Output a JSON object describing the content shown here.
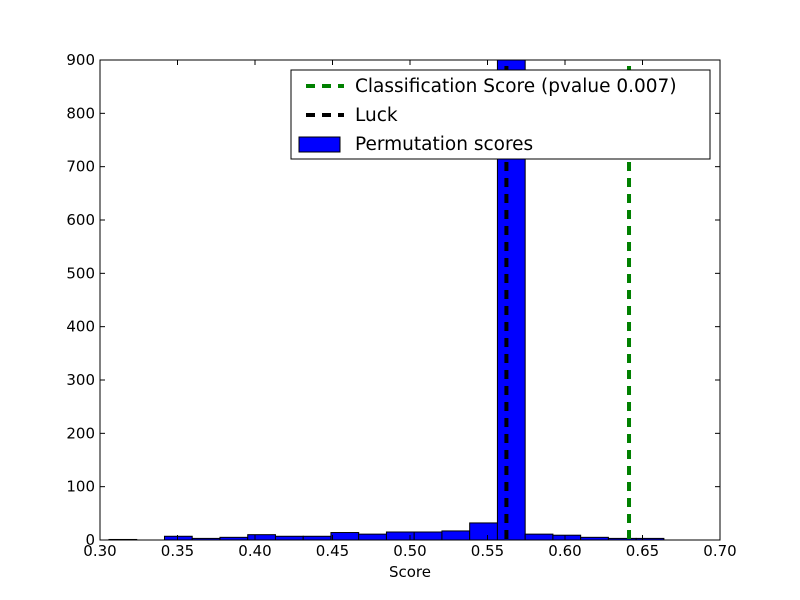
{
  "chart_data": {
    "type": "bar",
    "title": "",
    "xlabel": "Score",
    "ylabel": "",
    "xlim": [
      0.3,
      0.7
    ],
    "ylim": [
      0,
      900
    ],
    "grid": false,
    "legend_position": "top-right",
    "x_ticks": [
      "0.30",
      "0.35",
      "0.40",
      "0.45",
      "0.50",
      "0.55",
      "0.60",
      "0.65",
      "0.70"
    ],
    "y_ticks": [
      "0",
      "100",
      "200",
      "300",
      "400",
      "500",
      "600",
      "700",
      "800",
      "900"
    ],
    "histogram": {
      "name": "Permutation scores",
      "color": "#0000ff",
      "bin_edges": [
        0.3058,
        0.3237,
        0.3416,
        0.3595,
        0.3774,
        0.3953,
        0.4132,
        0.4311,
        0.449,
        0.4669,
        0.4848,
        0.5027,
        0.5206,
        0.5385,
        0.5564,
        0.5743,
        0.5922,
        0.6101,
        0.628,
        0.6459,
        0.6638
      ],
      "counts": [
        1,
        0,
        7,
        3,
        5,
        10,
        7,
        7,
        14,
        11,
        15,
        15,
        17,
        32,
        900,
        11,
        9,
        5,
        3,
        3
      ]
    },
    "vlines": [
      {
        "name": "Classification Score (pvalue 0.007)",
        "x": 0.6413,
        "color": "#008000"
      },
      {
        "name": "Luck",
        "x": 0.5622,
        "color": "#000000"
      }
    ]
  }
}
